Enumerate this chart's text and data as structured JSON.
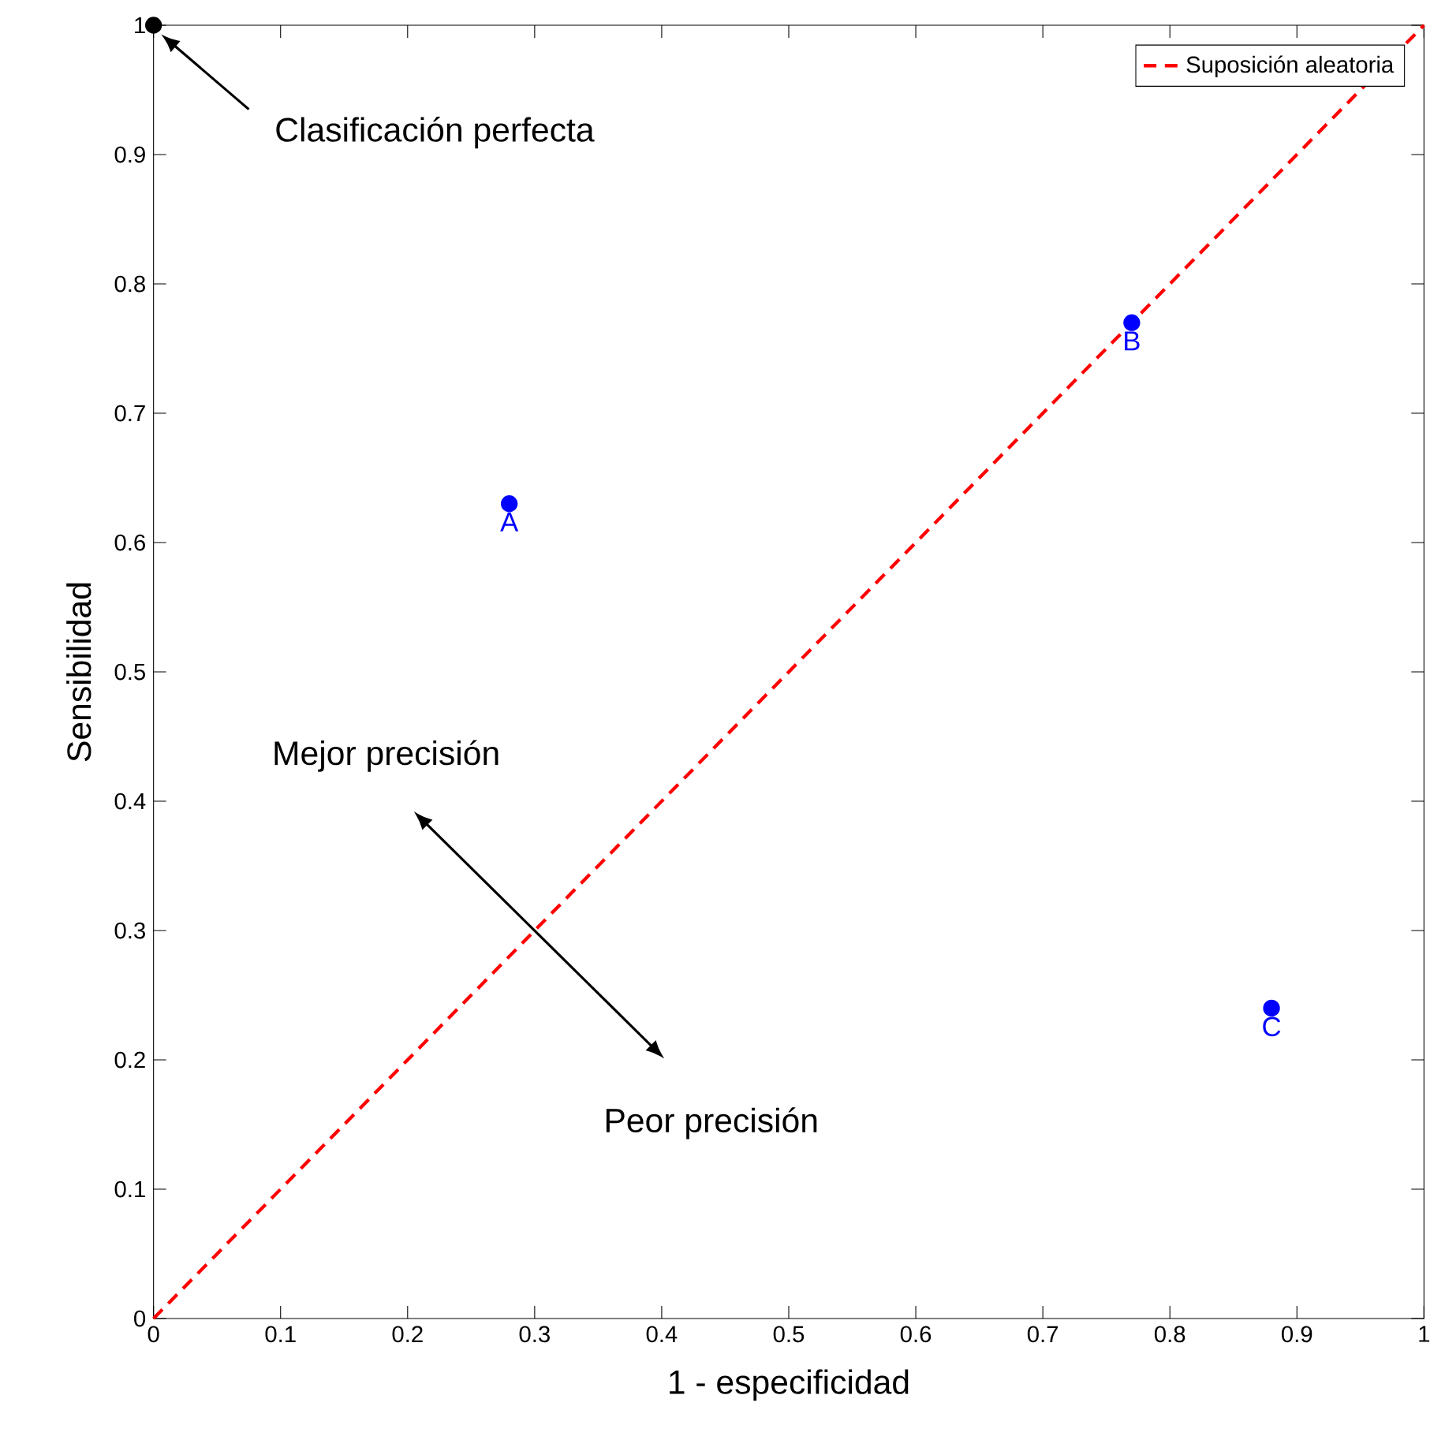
{
  "chart_data": {
    "type": "scatter",
    "xlabel": "1 - especificidad",
    "ylabel": "Sensibilidad",
    "xlim": [
      0,
      1
    ],
    "ylim": [
      0,
      1
    ],
    "xticks": [
      0,
      0.1,
      0.2,
      0.3,
      0.4,
      0.5,
      0.6,
      0.7,
      0.8,
      0.9,
      1
    ],
    "yticks": [
      0,
      0.1,
      0.2,
      0.3,
      0.4,
      0.5,
      0.6,
      0.7,
      0.8,
      0.9,
      1
    ],
    "legend": "top right",
    "series": [
      {
        "name": "Suposición aleatoria",
        "type": "line",
        "color": "#ff0000",
        "line_style": "dashed",
        "marker": "none",
        "x": [
          0,
          1
        ],
        "values": [
          0,
          1
        ]
      },
      {
        "color": "#0000ff",
        "marker": "circle",
        "x": [
          0.28,
          0.77,
          0.88
        ],
        "values": [
          0.63,
          0.77,
          0.24
        ],
        "value_labels": [
          "A",
          "B",
          "C"
        ]
      },
      {
        "color": "#000000",
        "marker": "circle",
        "x": [
          0
        ],
        "values": [
          1
        ]
      }
    ],
    "annotations": [
      "Clasificación perfecta",
      "Mejor precisión",
      "Peor precisión"
    ]
  }
}
